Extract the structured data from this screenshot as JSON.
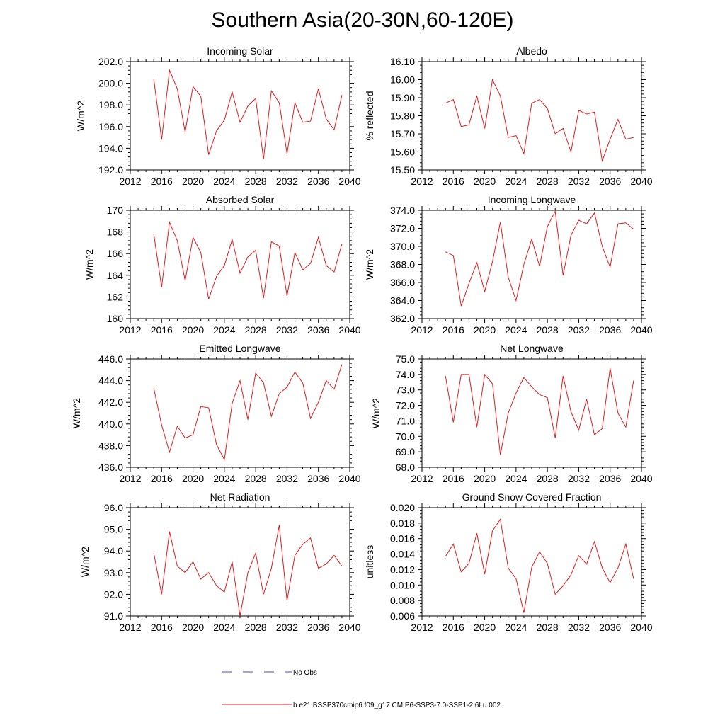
{
  "page": {
    "title": "Southern Asia(20-30N,60-120E)"
  },
  "legend": {
    "obs_label": "No Obs",
    "model_label": "b.e21.BSSP370cmip6.f09_g17.CMIP6-SSP3-7.0-SSP1-2.6Lu.002",
    "obs_color": "#4a4aa8",
    "model_color": "#e41a1c"
  },
  "chart_data": [
    {
      "type": "line",
      "title": "Incoming Solar",
      "ylabel": "W/m^2",
      "xlim": [
        2012,
        2040
      ],
      "ylim": [
        192,
        202
      ],
      "xticks": [
        2012,
        2016,
        2020,
        2024,
        2028,
        2032,
        2036,
        2040
      ],
      "yticks": [
        192,
        194,
        196,
        198,
        200,
        202
      ],
      "ytick_labels": [
        "192.0",
        "194.0",
        "196.0",
        "198.0",
        "200.0",
        "202.0"
      ],
      "x": [
        2015,
        2016,
        2017,
        2018,
        2019,
        2020,
        2021,
        2022,
        2023,
        2024,
        2025,
        2026,
        2027,
        2028,
        2029,
        2030,
        2031,
        2032,
        2033,
        2034,
        2035,
        2036,
        2037,
        2038,
        2039
      ],
      "series": [
        {
          "values": [
            200.4,
            194.8,
            201.2,
            199.5,
            195.5,
            199.7,
            198.8,
            193.4,
            195.6,
            196.6,
            199.2,
            196.4,
            197.9,
            198.6,
            193.0,
            199.3,
            198.2,
            193.5,
            198.2,
            196.4,
            196.5,
            199.5,
            196.7,
            195.7,
            198.9
          ],
          "color": "#e41a1c"
        }
      ]
    },
    {
      "type": "line",
      "title": "Albedo",
      "ylabel": "% reflected",
      "xlim": [
        2012,
        2040
      ],
      "ylim": [
        15.5,
        16.1
      ],
      "xticks": [
        2012,
        2016,
        2020,
        2024,
        2028,
        2032,
        2036,
        2040
      ],
      "yticks": [
        15.5,
        15.6,
        15.7,
        15.8,
        15.9,
        16.0,
        16.1
      ],
      "ytick_labels": [
        "15.50",
        "15.60",
        "15.70",
        "15.80",
        "15.90",
        "16.00",
        "16.10"
      ],
      "x": [
        2015,
        2016,
        2017,
        2018,
        2019,
        2020,
        2021,
        2022,
        2023,
        2024,
        2025,
        2026,
        2027,
        2028,
        2029,
        2030,
        2031,
        2032,
        2033,
        2034,
        2035,
        2036,
        2037,
        2038,
        2039
      ],
      "series": [
        {
          "values": [
            15.87,
            15.89,
            15.74,
            15.75,
            15.91,
            15.73,
            16.0,
            15.91,
            15.68,
            15.69,
            15.59,
            15.87,
            15.89,
            15.84,
            15.7,
            15.73,
            15.6,
            15.83,
            15.81,
            15.82,
            15.55,
            15.67,
            15.78,
            15.67,
            15.68
          ],
          "color": "#e41a1c"
        }
      ]
    },
    {
      "type": "line",
      "title": "Absorbed Solar",
      "ylabel": "W/m^2",
      "xlim": [
        2012,
        2040
      ],
      "ylim": [
        160,
        170
      ],
      "xticks": [
        2012,
        2016,
        2020,
        2024,
        2028,
        2032,
        2036,
        2040
      ],
      "yticks": [
        160,
        162,
        164,
        166,
        168,
        170
      ],
      "ytick_labels": [
        "160",
        "162",
        "164",
        "166",
        "168",
        "170"
      ],
      "x": [
        2015,
        2016,
        2017,
        2018,
        2019,
        2020,
        2021,
        2022,
        2023,
        2024,
        2025,
        2026,
        2027,
        2028,
        2029,
        2030,
        2031,
        2032,
        2033,
        2034,
        2035,
        2036,
        2037,
        2038,
        2039
      ],
      "series": [
        {
          "values": [
            167.8,
            162.9,
            168.9,
            167.2,
            163.5,
            167.5,
            166.1,
            161.8,
            163.9,
            164.9,
            167.3,
            164.2,
            165.7,
            166.3,
            161.9,
            167.1,
            166.7,
            162.1,
            166.1,
            164.5,
            165.1,
            167.5,
            164.9,
            164.3,
            166.9
          ],
          "color": "#e41a1c"
        }
      ]
    },
    {
      "type": "line",
      "title": "Incoming Longwave",
      "ylabel": "W/m^2",
      "xlim": [
        2012,
        2040
      ],
      "ylim": [
        362,
        374
      ],
      "xticks": [
        2012,
        2016,
        2020,
        2024,
        2028,
        2032,
        2036,
        2040
      ],
      "yticks": [
        362,
        364,
        366,
        368,
        370,
        372,
        374
      ],
      "ytick_labels": [
        "362.0",
        "364.0",
        "366.0",
        "368.0",
        "370.0",
        "372.0",
        "374.0"
      ],
      "x": [
        2015,
        2016,
        2017,
        2018,
        2019,
        2020,
        2021,
        2022,
        2023,
        2024,
        2025,
        2026,
        2027,
        2028,
        2029,
        2030,
        2031,
        2032,
        2033,
        2034,
        2035,
        2036,
        2037,
        2038,
        2039
      ],
      "series": [
        {
          "values": [
            369.4,
            369.0,
            363.4,
            365.9,
            368.2,
            365.0,
            368.3,
            372.7,
            366.6,
            364.0,
            368.0,
            370.8,
            367.8,
            372.2,
            373.9,
            366.8,
            371.2,
            372.9,
            372.5,
            373.7,
            370.0,
            367.7,
            372.5,
            372.6,
            371.9
          ],
          "color": "#e41a1c"
        }
      ]
    },
    {
      "type": "line",
      "title": "Emitted Longwave",
      "ylabel": "W/m^2",
      "xlim": [
        2012,
        2040
      ],
      "ylim": [
        436,
        446
      ],
      "xticks": [
        2012,
        2016,
        2020,
        2024,
        2028,
        2032,
        2036,
        2040
      ],
      "yticks": [
        436,
        438,
        440,
        442,
        444,
        446
      ],
      "ytick_labels": [
        "436.0",
        "438.0",
        "440.0",
        "442.0",
        "444.0",
        "446.0"
      ],
      "x": [
        2015,
        2016,
        2017,
        2018,
        2019,
        2020,
        2021,
        2022,
        2023,
        2024,
        2025,
        2026,
        2027,
        2028,
        2029,
        2030,
        2031,
        2032,
        2033,
        2034,
        2035,
        2036,
        2037,
        2038,
        2039
      ],
      "series": [
        {
          "values": [
            443.3,
            439.9,
            437.4,
            439.8,
            438.7,
            439.0,
            441.6,
            441.5,
            438.1,
            436.7,
            441.9,
            444.0,
            440.4,
            444.7,
            443.8,
            440.7,
            442.8,
            443.4,
            444.8,
            443.8,
            440.5,
            442.0,
            444.0,
            443.2,
            445.5
          ],
          "color": "#e41a1c"
        }
      ]
    },
    {
      "type": "line",
      "title": "Net Longwave",
      "ylabel": "W/m^2",
      "xlim": [
        2012,
        2040
      ],
      "ylim": [
        68,
        75
      ],
      "xticks": [
        2012,
        2016,
        2020,
        2024,
        2028,
        2032,
        2036,
        2040
      ],
      "yticks": [
        68,
        69,
        70,
        71,
        72,
        73,
        74,
        75
      ],
      "ytick_labels": [
        "68.0",
        "69.0",
        "70.0",
        "71.0",
        "72.0",
        "73.0",
        "74.0",
        "75.0"
      ],
      "x": [
        2015,
        2016,
        2017,
        2018,
        2019,
        2020,
        2021,
        2022,
        2023,
        2024,
        2025,
        2026,
        2027,
        2028,
        2029,
        2030,
        2031,
        2032,
        2033,
        2034,
        2035,
        2036,
        2037,
        2038,
        2039
      ],
      "series": [
        {
          "values": [
            73.9,
            70.9,
            74.0,
            74.0,
            70.6,
            74.0,
            73.4,
            68.8,
            71.5,
            72.8,
            73.8,
            73.2,
            72.7,
            72.5,
            69.9,
            73.9,
            71.6,
            70.4,
            72.4,
            70.1,
            70.5,
            74.4,
            71.5,
            70.6,
            73.6
          ],
          "color": "#e41a1c"
        }
      ]
    },
    {
      "type": "line",
      "title": "Net Radiation",
      "ylabel": "W/m^2",
      "xlim": [
        2012,
        2040
      ],
      "ylim": [
        91,
        96
      ],
      "xticks": [
        2012,
        2016,
        2020,
        2024,
        2028,
        2032,
        2036,
        2040
      ],
      "yticks": [
        91,
        92,
        93,
        94,
        95,
        96
      ],
      "ytick_labels": [
        "91.0",
        "92.0",
        "93.0",
        "94.0",
        "95.0",
        "96.0"
      ],
      "x": [
        2015,
        2016,
        2017,
        2018,
        2019,
        2020,
        2021,
        2022,
        2023,
        2024,
        2025,
        2026,
        2027,
        2028,
        2029,
        2030,
        2031,
        2032,
        2033,
        2034,
        2035,
        2036,
        2037,
        2038,
        2039
      ],
      "series": [
        {
          "values": [
            93.9,
            92.0,
            94.9,
            93.3,
            93.0,
            93.5,
            92.7,
            93.0,
            92.4,
            92.1,
            93.5,
            91.0,
            93.0,
            93.9,
            92.0,
            93.2,
            95.2,
            91.7,
            93.8,
            94.3,
            94.6,
            93.2,
            93.4,
            93.8,
            93.3
          ],
          "color": "#e41a1c"
        }
      ]
    },
    {
      "type": "line",
      "title": "Ground Snow Covered Fraction",
      "ylabel": "unitless",
      "xlim": [
        2012,
        2040
      ],
      "ylim": [
        0.006,
        0.02
      ],
      "xticks": [
        2012,
        2016,
        2020,
        2024,
        2028,
        2032,
        2036,
        2040
      ],
      "yticks": [
        0.006,
        0.008,
        0.01,
        0.012,
        0.014,
        0.016,
        0.018,
        0.02
      ],
      "ytick_labels": [
        "0.006",
        "0.008",
        "0.010",
        "0.012",
        "0.014",
        "0.016",
        "0.018",
        "0.020"
      ],
      "x": [
        2015,
        2016,
        2017,
        2018,
        2019,
        2020,
        2021,
        2022,
        2023,
        2024,
        2025,
        2026,
        2027,
        2028,
        2029,
        2030,
        2031,
        2032,
        2033,
        2034,
        2035,
        2036,
        2037,
        2038,
        2039
      ],
      "series": [
        {
          "values": [
            0.0137,
            0.0153,
            0.0117,
            0.0128,
            0.0167,
            0.0114,
            0.017,
            0.0185,
            0.0122,
            0.0108,
            0.0064,
            0.0123,
            0.0143,
            0.0128,
            0.0088,
            0.0099,
            0.0113,
            0.0138,
            0.0127,
            0.0156,
            0.0122,
            0.0103,
            0.0122,
            0.0153,
            0.0108
          ],
          "color": "#e41a1c"
        }
      ]
    }
  ]
}
